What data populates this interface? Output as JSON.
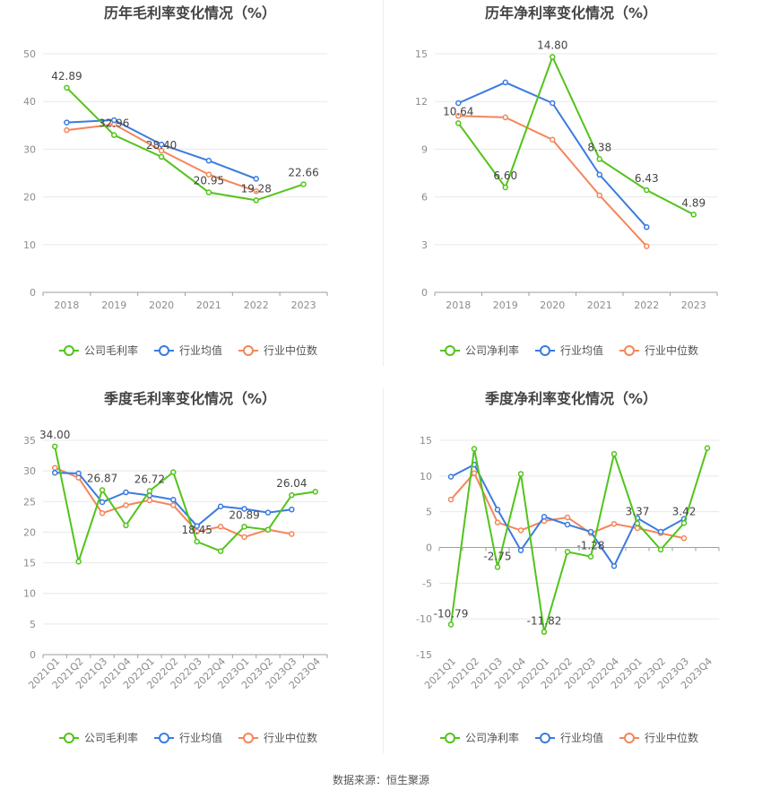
{
  "source_label": "数据来源：恒生聚源",
  "colors": {
    "company": "#52c41a",
    "industry_avg": "#3b7be0",
    "industry_median": "#f4865b"
  },
  "legend_labels": {
    "gross": [
      "公司毛利率",
      "行业均值",
      "行业中位数"
    ],
    "net": [
      "公司净利率",
      "行业均值",
      "行业中位数"
    ]
  },
  "chart_data": [
    {
      "id": "annual-gross",
      "type": "line",
      "title": "历年毛利率变化情况（%）",
      "categories": [
        "2018",
        "2019",
        "2020",
        "2021",
        "2022",
        "2023"
      ],
      "ylim": [
        0,
        50
      ],
      "yticks": [
        0,
        10,
        20,
        30,
        40,
        50
      ],
      "grid": true,
      "legend": "bottom",
      "series": [
        {
          "name": "公司毛利率",
          "values": [
            42.89,
            32.96,
            28.4,
            20.95,
            19.28,
            22.66
          ]
        },
        {
          "name": "行业均值",
          "values": [
            35.6,
            36.1,
            31.0,
            27.6,
            23.8,
            null
          ]
        },
        {
          "name": "行业中位数",
          "values": [
            34.0,
            35.2,
            29.7,
            24.7,
            21.2,
            null
          ]
        }
      ],
      "data_labels": [
        {
          "series": 0,
          "index": 0,
          "text": "42.89"
        },
        {
          "series": 0,
          "index": 1,
          "text": "32.96"
        },
        {
          "series": 0,
          "index": 2,
          "text": "28.40"
        },
        {
          "series": 0,
          "index": 3,
          "text": "20.95"
        },
        {
          "series": 0,
          "index": 4,
          "text": "19.28"
        },
        {
          "series": 0,
          "index": 5,
          "text": "22.66"
        }
      ]
    },
    {
      "id": "annual-net",
      "type": "line",
      "title": "历年净利率变化情况（%）",
      "categories": [
        "2018",
        "2019",
        "2020",
        "2021",
        "2022",
        "2023"
      ],
      "ylim": [
        0,
        15
      ],
      "yticks": [
        0,
        3,
        6,
        9,
        12,
        15
      ],
      "grid": true,
      "legend": "bottom",
      "series": [
        {
          "name": "公司净利率",
          "values": [
            10.64,
            6.6,
            14.8,
            8.38,
            6.43,
            4.89
          ]
        },
        {
          "name": "行业均值",
          "values": [
            11.9,
            13.2,
            11.9,
            7.4,
            4.1,
            null
          ]
        },
        {
          "name": "行业中位数",
          "values": [
            11.1,
            11.0,
            9.6,
            6.1,
            2.9,
            null
          ]
        }
      ],
      "data_labels": [
        {
          "series": 0,
          "index": 0,
          "text": "10.64"
        },
        {
          "series": 0,
          "index": 1,
          "text": "6.60"
        },
        {
          "series": 0,
          "index": 2,
          "text": "14.80"
        },
        {
          "series": 0,
          "index": 3,
          "text": "8.38"
        },
        {
          "series": 0,
          "index": 4,
          "text": "6.43"
        },
        {
          "series": 0,
          "index": 5,
          "text": "4.89"
        }
      ]
    },
    {
      "id": "quarterly-gross",
      "type": "line",
      "title": "季度毛利率变化情况（%）",
      "categories": [
        "2021Q1",
        "2021Q2",
        "2021Q3",
        "2021Q4",
        "2022Q1",
        "2022Q2",
        "2022Q3",
        "2022Q4",
        "2023Q1",
        "2023Q2",
        "2023Q3",
        "2023Q4"
      ],
      "ylim": [
        0,
        35
      ],
      "yticks": [
        0,
        5,
        10,
        15,
        20,
        25,
        30,
        35
      ],
      "grid": true,
      "legend": "bottom",
      "series": [
        {
          "name": "公司毛利率",
          "values": [
            34.0,
            15.2,
            26.87,
            21.1,
            26.72,
            29.8,
            18.45,
            16.9,
            20.89,
            20.4,
            26.04,
            26.6
          ]
        },
        {
          "name": "行业均值",
          "values": [
            29.7,
            29.6,
            24.9,
            26.5,
            26.0,
            25.3,
            21.0,
            24.2,
            23.8,
            23.2,
            23.7,
            null
          ]
        },
        {
          "name": "行业中位数",
          "values": [
            30.5,
            28.9,
            23.1,
            24.4,
            25.2,
            24.4,
            20.1,
            20.9,
            19.2,
            20.4,
            19.7,
            null
          ]
        }
      ],
      "data_labels": [
        {
          "series": 0,
          "index": 0,
          "text": "34.00"
        },
        {
          "series": 0,
          "index": 2,
          "text": "26.87"
        },
        {
          "series": 0,
          "index": 4,
          "text": "26.72"
        },
        {
          "series": 0,
          "index": 6,
          "text": "18.45"
        },
        {
          "series": 0,
          "index": 8,
          "text": "20.89"
        },
        {
          "series": 0,
          "index": 10,
          "text": "26.04"
        }
      ]
    },
    {
      "id": "quarterly-net",
      "type": "line",
      "title": "季度净利率变化情况（%）",
      "categories": [
        "2021Q1",
        "2021Q2",
        "2021Q3",
        "2021Q4",
        "2022Q1",
        "2022Q2",
        "2022Q3",
        "2022Q4",
        "2023Q1",
        "2023Q2",
        "2023Q3",
        "2023Q4"
      ],
      "ylim": [
        -15,
        15
      ],
      "yticks": [
        -15,
        -10,
        -5,
        0,
        5,
        10,
        15
      ],
      "grid": true,
      "legend": "bottom",
      "series": [
        {
          "name": "公司净利率",
          "values": [
            -10.79,
            13.8,
            -2.75,
            10.3,
            -11.82,
            -0.6,
            -1.28,
            13.1,
            3.37,
            -0.3,
            3.42,
            13.9
          ]
        },
        {
          "name": "行业均值",
          "values": [
            9.9,
            11.6,
            5.3,
            -0.4,
            4.3,
            3.2,
            2.2,
            -2.6,
            4.1,
            2.2,
            4.0,
            null
          ]
        },
        {
          "name": "行业中位数",
          "values": [
            6.7,
            10.4,
            3.5,
            2.4,
            3.7,
            4.2,
            2.0,
            3.3,
            2.7,
            2.0,
            1.3,
            null
          ]
        }
      ],
      "data_labels": [
        {
          "series": 0,
          "index": 0,
          "text": "-10.79"
        },
        {
          "series": 0,
          "index": 2,
          "text": "-2.75"
        },
        {
          "series": 0,
          "index": 4,
          "text": "-11.82"
        },
        {
          "series": 0,
          "index": 6,
          "text": "-1.28"
        },
        {
          "series": 0,
          "index": 8,
          "text": "3.37"
        },
        {
          "series": 0,
          "index": 10,
          "text": "3.42"
        }
      ]
    }
  ]
}
